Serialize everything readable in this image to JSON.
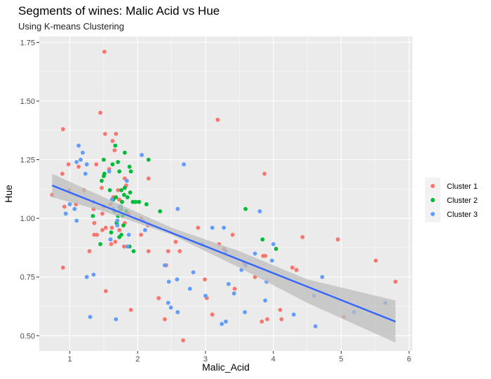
{
  "chart_data": {
    "type": "scatter",
    "title": "Segments of wines: Malic Acid vs Hue",
    "subtitle": "Using K-means Clustering",
    "xlabel": "Malic_Acid",
    "ylabel": "Hue",
    "xlim": [
      0.55,
      6.05
    ],
    "ylim": [
      0.435,
      1.775
    ],
    "x_ticks": [
      1,
      2,
      3,
      4,
      5,
      6
    ],
    "x_tick_labels": [
      "1",
      "2",
      "3",
      "4",
      "5",
      "6"
    ],
    "y_ticks": [
      0.5,
      0.75,
      1.0,
      1.25,
      1.5,
      1.75
    ],
    "y_tick_labels": [
      "0.50",
      "0.75",
      "1.00",
      "1.25",
      "1.50",
      "1.75"
    ],
    "grid": true,
    "legend_position": "right",
    "colors": {
      "panel_background": "#ebebeb",
      "grid": "#ffffff",
      "Cluster 1": "#f8766d",
      "Cluster 2": "#00ba38",
      "Cluster 3": "#619cff",
      "trend_line": "#3366ff",
      "confidence_band": "#bebebe"
    },
    "series": [
      {
        "name": "Cluster 1",
        "points": [
          [
            1.51,
            1.71
          ],
          [
            1.45,
            1.45
          ],
          [
            0.9,
            1.38
          ],
          [
            3.18,
            1.42
          ],
          [
            1.52,
            1.36
          ],
          [
            1.68,
            1.36
          ],
          [
            1.63,
            1.33
          ],
          [
            1.66,
            1.29
          ],
          [
            1.39,
            1.23
          ],
          [
            0.98,
            1.23
          ],
          [
            1.13,
            1.22
          ],
          [
            1.58,
            1.21
          ],
          [
            0.89,
            1.19
          ],
          [
            3.87,
            1.19
          ],
          [
            1.81,
            1.17
          ],
          [
            2.16,
            1.17
          ],
          [
            1.83,
            1.14
          ],
          [
            1.47,
            1.13
          ],
          [
            1.21,
            1.12
          ],
          [
            0.99,
            1.12
          ],
          [
            1.71,
            1.12
          ],
          [
            1.64,
            1.09
          ],
          [
            0.74,
            1.1
          ],
          [
            1.73,
            1.08
          ],
          [
            0.92,
            1.05
          ],
          [
            1.09,
            1.06
          ],
          [
            1.5,
            1.05
          ],
          [
            1.6,
            1.06
          ],
          [
            1.35,
            1.04
          ],
          [
            1.48,
            1.02
          ],
          [
            1.87,
            1.02
          ],
          [
            2.05,
            1.0
          ],
          [
            2.15,
            0.97
          ],
          [
            1.81,
            0.98
          ],
          [
            1.36,
            0.98
          ],
          [
            1.53,
            0.96
          ],
          [
            1.62,
            0.96
          ],
          [
            1.73,
            0.95
          ],
          [
            1.48,
            0.95
          ],
          [
            1.4,
            0.93
          ],
          [
            2.05,
            0.93
          ],
          [
            2.89,
            0.96
          ],
          [
            1.36,
            0.93
          ],
          [
            1.61,
            0.89
          ],
          [
            1.67,
            0.9
          ],
          [
            1.8,
            0.88
          ],
          [
            2.56,
            0.9
          ],
          [
            3.2,
            0.89
          ],
          [
            3.4,
            0.93
          ],
          [
            3.27,
            0.87
          ],
          [
            2.45,
            0.86
          ],
          [
            2.16,
            0.86
          ],
          [
            1.29,
            0.86
          ],
          [
            2.62,
            0.86
          ],
          [
            3.57,
            0.81
          ],
          [
            3.85,
            0.84
          ],
          [
            3.73,
            0.75
          ],
          [
            4.28,
            0.79
          ],
          [
            4.34,
            0.78
          ],
          [
            4.43,
            0.92
          ],
          [
            4.95,
            0.91
          ],
          [
            5.51,
            0.82
          ],
          [
            5.8,
            0.73
          ],
          [
            0.9,
            0.79
          ],
          [
            2.42,
            0.8
          ],
          [
            2.99,
            0.74
          ],
          [
            3.02,
            0.66
          ],
          [
            3.43,
            0.7
          ],
          [
            2.31,
            0.66
          ],
          [
            3.88,
            0.84
          ],
          [
            3.91,
            0.57
          ],
          [
            4.12,
            0.57
          ],
          [
            4.1,
            0.61
          ],
          [
            3.83,
            0.56
          ],
          [
            5.04,
            0.58
          ],
          [
            2.4,
            0.57
          ],
          [
            2.67,
            0.48
          ],
          [
            1.53,
            0.69
          ],
          [
            1.9,
            0.61
          ],
          [
            3.1,
            0.59
          ]
        ]
      },
      {
        "name": "Cluster 2",
        "points": [
          [
            1.67,
            1.31
          ],
          [
            1.5,
            1.25
          ],
          [
            2.16,
            1.25
          ],
          [
            1.63,
            1.23
          ],
          [
            1.71,
            1.24
          ],
          [
            1.81,
            1.28
          ],
          [
            1.9,
            1.2
          ],
          [
            1.73,
            1.2
          ],
          [
            1.51,
            1.19
          ],
          [
            1.47,
            1.16
          ],
          [
            1.5,
            1.18
          ],
          [
            1.88,
            1.22
          ],
          [
            1.81,
            1.13
          ],
          [
            1.59,
            1.12
          ],
          [
            1.76,
            1.12
          ],
          [
            1.8,
            1.1
          ],
          [
            1.89,
            1.11
          ],
          [
            1.85,
            1.09
          ],
          [
            1.68,
            1.09
          ],
          [
            1.77,
            1.07
          ],
          [
            1.64,
            1.08
          ],
          [
            1.93,
            1.07
          ],
          [
            1.97,
            1.07
          ],
          [
            2.02,
            1.07
          ],
          [
            2.13,
            1.06
          ],
          [
            1.73,
            1.05
          ],
          [
            1.75,
            1.05
          ],
          [
            1.76,
            1.04
          ],
          [
            1.66,
            1.03
          ],
          [
            1.83,
            1.03
          ],
          [
            1.34,
            1.01
          ],
          [
            1.71,
            1.01
          ],
          [
            1.78,
            1.01
          ],
          [
            2.33,
            1.03
          ],
          [
            1.69,
            0.98
          ],
          [
            1.79,
            0.97
          ],
          [
            1.73,
            0.92
          ],
          [
            1.76,
            0.93
          ],
          [
            1.61,
            0.94
          ],
          [
            1.45,
            0.89
          ],
          [
            1.88,
            0.88
          ],
          [
            1.94,
            0.86
          ],
          [
            3.59,
            1.04
          ],
          [
            3.84,
            0.91
          ],
          [
            4.04,
            0.87
          ]
        ]
      },
      {
        "name": "Cluster 3",
        "points": [
          [
            1.13,
            1.31
          ],
          [
            1.19,
            1.28
          ],
          [
            1.25,
            1.23
          ],
          [
            1.1,
            1.24
          ],
          [
            1.16,
            1.25
          ],
          [
            1.23,
            1.19
          ],
          [
            2.06,
            1.27
          ],
          [
            2.68,
            1.23
          ],
          [
            1.58,
            1.2
          ],
          [
            1.84,
            1.16
          ],
          [
            1.35,
            1.07
          ],
          [
            1.0,
            1.06
          ],
          [
            1.07,
            1.04
          ],
          [
            0.94,
            1.02
          ],
          [
            1.1,
            0.99
          ],
          [
            1.62,
            1.08
          ],
          [
            1.64,
            1.04
          ],
          [
            1.73,
            1.03
          ],
          [
            1.7,
            0.99
          ],
          [
            1.74,
            1.05
          ],
          [
            2.59,
            1.04
          ],
          [
            2.08,
            0.99
          ],
          [
            2.11,
            0.95
          ],
          [
            1.87,
            0.93
          ],
          [
            1.85,
            0.88
          ],
          [
            1.6,
            0.91
          ],
          [
            1.7,
            0.97
          ],
          [
            3.1,
            0.96
          ],
          [
            3.27,
            0.96
          ],
          [
            3.8,
            1.03
          ],
          [
            4.0,
            0.89
          ],
          [
            3.3,
            0.86
          ],
          [
            3.73,
            0.85
          ],
          [
            3.59,
            0.8
          ],
          [
            3.53,
            0.78
          ],
          [
            2.4,
            0.8
          ],
          [
            2.46,
            0.73
          ],
          [
            2.58,
            0.74
          ],
          [
            2.82,
            0.77
          ],
          [
            3.34,
            0.72
          ],
          [
            3.9,
            0.73
          ],
          [
            3.98,
            0.82
          ],
          [
            4.72,
            0.75
          ],
          [
            4.6,
            0.67
          ],
          [
            3.42,
            0.68
          ],
          [
            3.0,
            0.67
          ],
          [
            2.95,
            0.89
          ],
          [
            3.88,
            0.65
          ],
          [
            2.77,
            0.7
          ],
          [
            2.49,
            0.62
          ],
          [
            1.25,
            0.75
          ],
          [
            1.35,
            0.76
          ],
          [
            1.3,
            0.58
          ],
          [
            1.68,
            0.57
          ],
          [
            2.59,
            0.6
          ],
          [
            3.58,
            0.6
          ],
          [
            4.3,
            0.59
          ],
          [
            4.62,
            0.54
          ],
          [
            5.19,
            0.6
          ],
          [
            5.65,
            0.64
          ],
          [
            3.3,
            0.56
          ],
          [
            3.24,
            0.55
          ],
          [
            2.45,
            0.64
          ]
        ]
      }
    ],
    "trend_line": {
      "x": [
        0.74,
        5.8
      ],
      "y": [
        1.14,
        0.56
      ]
    },
    "confidence_band": {
      "x": [
        0.74,
        1.5,
        2.5,
        3.5,
        4.5,
        5.8
      ],
      "lower": [
        1.09,
        1.03,
        0.93,
        0.79,
        0.64,
        0.47
      ],
      "upper": [
        1.19,
        1.09,
        0.96,
        0.86,
        0.74,
        0.65
      ]
    },
    "legend": [
      "Cluster 1",
      "Cluster 2",
      "Cluster 3"
    ]
  }
}
